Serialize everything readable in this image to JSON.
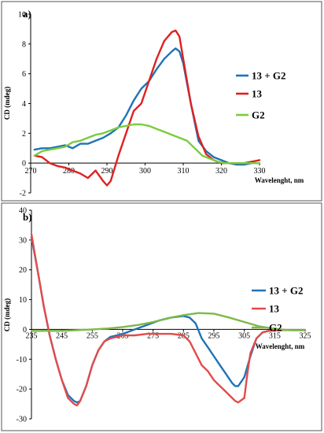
{
  "chart_data": [
    {
      "panel": "a)",
      "type": "line",
      "xlabel": "Wavelenght, nm",
      "ylabel": "CD (mdeg)",
      "xlim": [
        270,
        330
      ],
      "ylim": [
        -2,
        10
      ],
      "xticks": [
        270,
        280,
        290,
        300,
        310,
        320,
        330
      ],
      "yticks": [
        -2,
        0,
        2,
        4,
        6,
        8,
        10
      ],
      "legend_position": "right",
      "series": [
        {
          "name": "13 + G2",
          "color": "#1f73b7",
          "x": [
            271,
            273,
            275,
            277,
            279,
            281,
            283,
            285,
            287,
            289,
            291,
            293,
            295,
            297,
            299,
            301,
            303,
            305,
            307,
            308,
            309,
            310,
            312,
            314,
            316,
            318,
            320,
            322,
            324,
            326,
            328,
            330
          ],
          "y": [
            0.9,
            1.0,
            1.0,
            1.1,
            1.2,
            1.0,
            1.3,
            1.3,
            1.5,
            1.7,
            2.0,
            2.4,
            3.2,
            4.2,
            5.0,
            5.5,
            6.3,
            7.0,
            7.5,
            7.7,
            7.5,
            6.7,
            4.0,
            1.5,
            0.8,
            0.4,
            0.2,
            0.0,
            -0.1,
            -0.1,
            0.0,
            0.0
          ]
        },
        {
          "name": "13",
          "color": "#e02020",
          "x": [
            271,
            273,
            275,
            277,
            279,
            281,
            283,
            285,
            287,
            289,
            290,
            291,
            293,
            295,
            297,
            299,
            301,
            303,
            305,
            307,
            308,
            309,
            310,
            312,
            314,
            316,
            318,
            320,
            322,
            324,
            326,
            328,
            330
          ],
          "y": [
            0.5,
            0.4,
            0.0,
            -0.2,
            -0.3,
            -0.5,
            -0.7,
            -1.0,
            -0.5,
            -1.2,
            -1.5,
            -1.2,
            0.5,
            2.0,
            3.5,
            4.0,
            5.5,
            7.0,
            8.2,
            8.8,
            8.9,
            8.5,
            7.0,
            4.0,
            1.8,
            0.6,
            0.2,
            0.0,
            0.0,
            0.0,
            0.0,
            0.1,
            0.2
          ]
        },
        {
          "name": "G2",
          "color": "#7acc3e",
          "x": [
            271,
            273,
            275,
            277,
            279,
            281,
            283,
            285,
            287,
            289,
            291,
            293,
            295,
            297,
            299,
            301,
            303,
            305,
            307,
            309,
            311,
            313,
            315,
            317,
            319,
            321,
            323,
            325,
            327,
            329,
            330
          ],
          "y": [
            0.5,
            0.8,
            0.9,
            1.0,
            1.1,
            1.4,
            1.5,
            1.7,
            1.9,
            2.0,
            2.2,
            2.4,
            2.5,
            2.6,
            2.6,
            2.5,
            2.3,
            2.1,
            1.9,
            1.7,
            1.5,
            1.0,
            0.5,
            0.3,
            0.1,
            0.0,
            0.0,
            0.0,
            0.0,
            0.0,
            0.0
          ]
        }
      ]
    },
    {
      "panel": "b)",
      "type": "line",
      "xlabel": "Wavelenght, nm",
      "ylabel": "CD (mdeg)",
      "xlim": [
        235,
        325
      ],
      "ylim": [
        -30,
        40
      ],
      "xticks": [
        235,
        245,
        255,
        265,
        275,
        285,
        295,
        305,
        315,
        325
      ],
      "yticks": [
        -30,
        -20,
        -10,
        0,
        10,
        20,
        30,
        40
      ],
      "legend_position": "right",
      "series": [
        {
          "name": "13 + G2",
          "color": "#1f73b7",
          "x": [
            235,
            237,
            239,
            241,
            243,
            245,
            247,
            249,
            250,
            251,
            253,
            255,
            257,
            259,
            261,
            263,
            265,
            269,
            273,
            277,
            281,
            285,
            287,
            289,
            291,
            293,
            295,
            297,
            299,
            301,
            302,
            303,
            305,
            307,
            309,
            311,
            313,
            315,
            319,
            325
          ],
          "y": [
            31,
            20,
            8,
            -2,
            -10,
            -17,
            -22,
            -24,
            -24.5,
            -24,
            -19,
            -12,
            -7,
            -4,
            -2.5,
            -2,
            -1.5,
            0,
            1.5,
            3,
            4,
            4.5,
            4,
            2,
            -3,
            -6,
            -9,
            -12,
            -15,
            -18,
            -19,
            -19,
            -16,
            -9,
            -3,
            -1,
            -0.5,
            -0.3,
            -0.2,
            -0.2
          ]
        },
        {
          "name": "13",
          "color": "#e34b4b",
          "x": [
            235,
            237,
            239,
            241,
            243,
            245,
            247,
            249,
            250,
            251,
            253,
            255,
            257,
            259,
            261,
            263,
            265,
            269,
            273,
            277,
            281,
            285,
            287,
            289,
            291,
            293,
            295,
            297,
            299,
            301,
            302,
            303,
            305,
            306,
            307,
            309,
            311,
            313,
            315,
            319,
            325
          ],
          "y": [
            32,
            20,
            8,
            -2,
            -10,
            -17,
            -23,
            -25,
            -25.5,
            -24,
            -19,
            -12,
            -7,
            -4,
            -3,
            -2.5,
            -2,
            -2,
            -1.5,
            -1.5,
            -1.5,
            -2,
            -4,
            -8,
            -12,
            -14,
            -17,
            -19,
            -21,
            -23,
            -24,
            -24.5,
            -23,
            -15,
            -8,
            -3,
            -1,
            -0.5,
            -0.3,
            -0.2,
            -0.2
          ]
        },
        {
          "name": "G2",
          "color": "#7fb947",
          "x": [
            235,
            245,
            255,
            260,
            265,
            270,
            275,
            280,
            285,
            290,
            295,
            300,
            305,
            310,
            315,
            320,
            325
          ],
          "y": [
            -0.5,
            -0.5,
            0,
            0.3,
            0.8,
            1.5,
            2.5,
            3.8,
            4.8,
            5.5,
            5.3,
            4.0,
            2.5,
            1.0,
            0.2,
            -0.3,
            -0.3
          ]
        }
      ]
    }
  ]
}
